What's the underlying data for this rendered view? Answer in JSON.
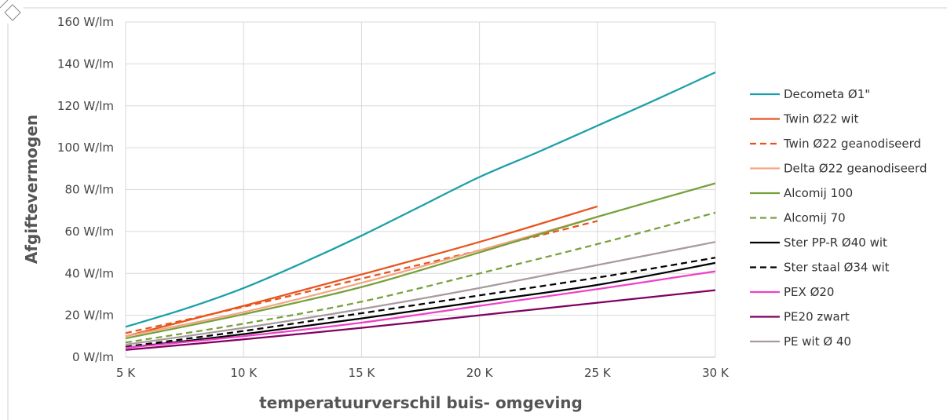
{
  "chart_data": {
    "type": "line",
    "xlabel": "temperatuurverschil buis- omgeving",
    "ylabel": "Afgiftevermogen",
    "xlim": [
      5,
      30
    ],
    "ylim": [
      0,
      160
    ],
    "x_ticks": [
      {
        "value": 5,
        "label": "5 K"
      },
      {
        "value": 10,
        "label": "10 K"
      },
      {
        "value": 15,
        "label": "15 K"
      },
      {
        "value": 20,
        "label": "20 K"
      },
      {
        "value": 25,
        "label": "25 K"
      },
      {
        "value": 30,
        "label": "30 K"
      }
    ],
    "y_ticks": [
      {
        "value": 0,
        "label": "0 W/lm"
      },
      {
        "value": 20,
        "label": "20 W/lm"
      },
      {
        "value": 40,
        "label": "40 W/lm"
      },
      {
        "value": 60,
        "label": "60 W/lm"
      },
      {
        "value": 80,
        "label": "80 W/lm"
      },
      {
        "value": 100,
        "label": "100 W/lm"
      },
      {
        "value": 120,
        "label": "120 W/lm"
      },
      {
        "value": 140,
        "label": "140 W/lm"
      },
      {
        "value": 160,
        "label": "160 W/lm"
      }
    ],
    "grid": true,
    "legend_position": "right",
    "series": [
      {
        "name": "Decometa Ø1\"",
        "color": "#1a9fa8",
        "dash": false,
        "x": [
          5,
          7.5,
          10,
          12.5,
          15,
          17.5,
          20,
          22.5,
          25,
          27.5,
          30
        ],
        "y": [
          14.5,
          23,
          33,
          45,
          58,
          72,
          86,
          98,
          110.5,
          123,
          136
        ]
      },
      {
        "name": "Twin Ø22 wit",
        "color": "#e8541e",
        "dash": false,
        "x": [
          5,
          10,
          15,
          20,
          25
        ],
        "y": [
          10,
          24.5,
          39.5,
          55,
          72
        ]
      },
      {
        "name": "Twin Ø22 geanodiseerd",
        "color": "#e8541e",
        "dash": true,
        "x": [
          5,
          10,
          15,
          20,
          25
        ],
        "y": [
          11.5,
          24,
          37.5,
          51,
          65
        ]
      },
      {
        "name": "Delta Ø22 geanodiseerd",
        "color": "#f4a582",
        "dash": false,
        "x": [
          5,
          10,
          15,
          20,
          25
        ],
        "y": [
          10,
          21.5,
          35.5,
          51,
          67
        ]
      },
      {
        "name": "Alcomij 100",
        "color": "#76a03a",
        "dash": false,
        "x": [
          5,
          10,
          15,
          20,
          25,
          30
        ],
        "y": [
          9,
          20.5,
          33.5,
          50,
          67,
          83
        ]
      },
      {
        "name": "Alcomij 70",
        "color": "#76a03a",
        "dash": true,
        "x": [
          5,
          10,
          15,
          20,
          25,
          30
        ],
        "y": [
          7,
          16,
          26.5,
          40,
          54,
          69
        ]
      },
      {
        "name": "Ster PP-R Ø40 wit",
        "color": "#000000",
        "dash": false,
        "x": [
          5,
          10,
          15,
          20,
          25,
          30
        ],
        "y": [
          4.5,
          11,
          18.5,
          26.5,
          34.5,
          45
        ]
      },
      {
        "name": "Ster staal Ø34 wit",
        "color": "#000000",
        "dash": true,
        "x": [
          5,
          10,
          15,
          20,
          25,
          30
        ],
        "y": [
          5,
          12.5,
          21,
          29.5,
          38,
          47.5
        ]
      },
      {
        "name": "PEX Ø20",
        "color": "#f040c8",
        "dash": false,
        "x": [
          5,
          10,
          15,
          20,
          25,
          30
        ],
        "y": [
          4.5,
          10,
          16.5,
          24.5,
          32.5,
          41
        ]
      },
      {
        "name": "PE20 zwart",
        "color": "#800060",
        "dash": false,
        "x": [
          5,
          10,
          15,
          20,
          25,
          30
        ],
        "y": [
          3.5,
          8.5,
          14,
          20,
          26,
          32
        ]
      },
      {
        "name": "PE wit Ø 40",
        "color": "#a89a9e",
        "dash": false,
        "x": [
          5,
          10,
          15,
          20,
          25,
          30
        ],
        "y": [
          6,
          14,
          23,
          33,
          44,
          55
        ]
      }
    ]
  }
}
